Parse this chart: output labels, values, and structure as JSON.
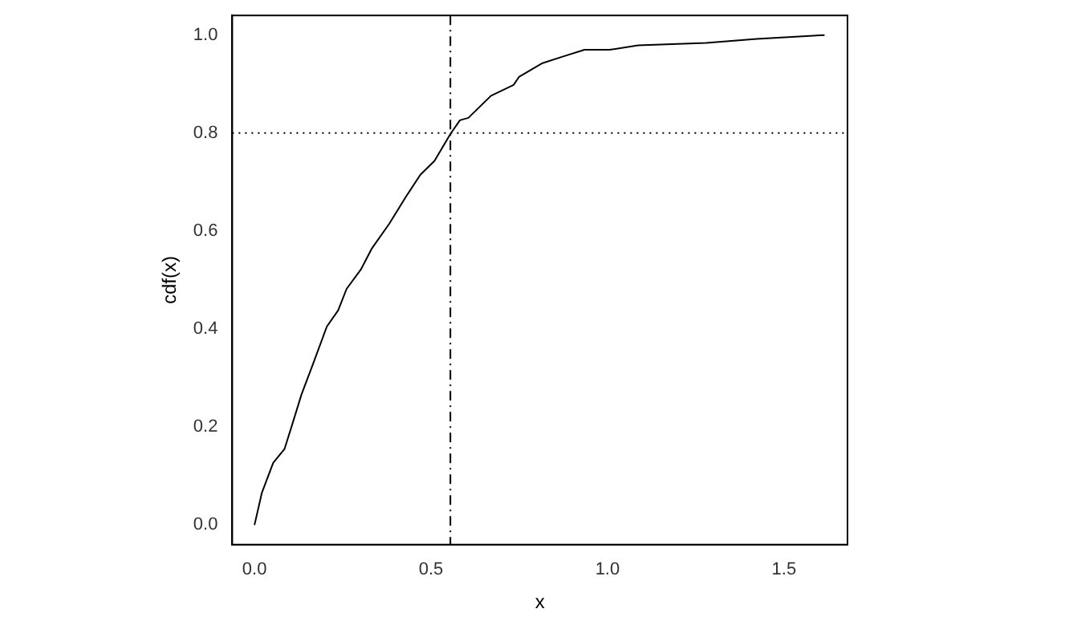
{
  "chart_data": {
    "type": "line",
    "xlabel": "x",
    "ylabel": "cdf(x)",
    "series": [
      {
        "color": "#000000",
        "x": [
          0,
          0.021,
          0.053,
          0.085,
          0.109,
          0.133,
          0.165,
          0.205,
          0.237,
          0.261,
          0.301,
          0.333,
          0.382,
          0.43,
          0.47,
          0.51,
          0.555,
          0.582,
          0.606,
          0.67,
          0.734,
          0.75,
          0.814,
          0.878,
          0.935,
          1.007,
          1.087,
          1.279,
          1.423,
          1.615
        ],
        "values": [
          0,
          0.066,
          0.127,
          0.155,
          0.21,
          0.266,
          0.327,
          0.405,
          0.438,
          0.482,
          0.521,
          0.565,
          0.615,
          0.671,
          0.715,
          0.743,
          0.798,
          0.826,
          0.831,
          0.876,
          0.898,
          0.915,
          0.942,
          0.957,
          0.97,
          0.97,
          0.979,
          0.984,
          0.992,
          1
        ]
      }
    ],
    "xlim": [
      -0.063,
      1.68
    ],
    "ylim": [
      -0.04,
      1.04
    ],
    "xticks": [
      {
        "value": 0,
        "label": "0.0"
      },
      0.5,
      {
        "value": 1,
        "label": "1.0"
      },
      1.5
    ],
    "yticks": [
      {
        "value": 0,
        "label": "0.0"
      },
      0.2,
      0.4,
      0.6,
      0.8,
      {
        "value": 1,
        "label": "1.0"
      }
    ],
    "ref_lines": [
      {
        "axis": "x",
        "value": 0.555,
        "color": "#000000",
        "line_style": "dashdot"
      },
      {
        "axis": "y",
        "value": 0.8,
        "color": "#000000",
        "line_style": "dotted"
      }
    ],
    "grid": false,
    "legend": false,
    "marker": "none",
    "line_style": "solid"
  }
}
